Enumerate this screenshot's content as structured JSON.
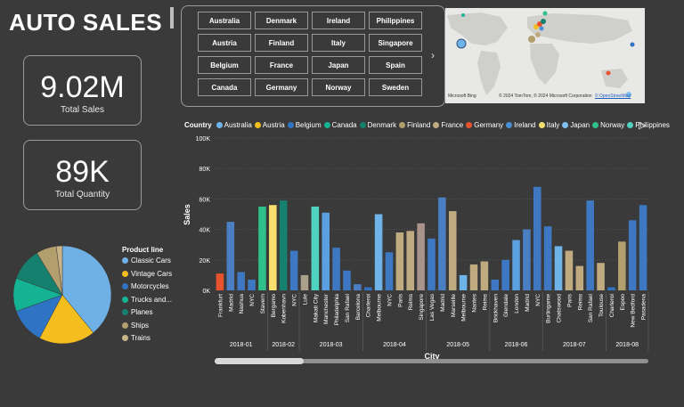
{
  "header": {
    "title": "AUTO SALES"
  },
  "kpis": {
    "total_sales": {
      "value": "9.02M",
      "label": "Total Sales"
    },
    "total_quantity": {
      "value": "89K",
      "label": "Total Quantity"
    }
  },
  "slicer": {
    "countries": [
      "Australia",
      "Denmark",
      "Ireland",
      "Philippines",
      "Austria",
      "Finland",
      "Italy",
      "Singapore",
      "Belgium",
      "France",
      "Japan",
      "Spain",
      "Canada",
      "Germany",
      "Norway",
      "Sweden"
    ]
  },
  "map": {
    "attribution_brand": "Microsoft Bing",
    "attribution": "© 2024 TomTom, © 2024 Microsoft Corporation",
    "terms_link": "© OpenStreetMap"
  },
  "colors": {
    "Australia": "#6fb4e8",
    "Austria": "#f5be1f",
    "Belgium": "#2f74c4",
    "Canada": "#14b394",
    "Denmark": "#15806e",
    "Finland": "#b29f6d",
    "France": "#c0aa80",
    "Germany": "#e8532f",
    "Ireland": "#4a8fd6",
    "Italy": "#f7e06e",
    "Japan": "#7fc0f0",
    "Norway": "#2fc08c",
    "Philippines": "#4fd3c0",
    "Singapore": "#a8948a",
    "Spain": "#4a7fc4",
    "Sweden": "#aba08a",
    "USA": "#3e78c2",
    "UK": "#5aa0e0",
    "Switzerland": "#b0a070"
  },
  "chart_data": [
    {
      "type": "bar",
      "title": "",
      "legend_title": "Country",
      "legend_placement": "top",
      "legend": [
        "Australia",
        "Austria",
        "Belgium",
        "Canada",
        "Denmark",
        "Finland",
        "France",
        "Germany",
        "Ireland",
        "Italy",
        "Japan",
        "Norway",
        "Philippines"
      ],
      "xlabel": "City",
      "ylabel": "Sales",
      "ylim": [
        0,
        100000
      ],
      "yticks": [
        "0K",
        "20K",
        "40K",
        "60K",
        "80K",
        "100K"
      ],
      "grid": true,
      "categories": [
        "Frankfurt",
        "Madrid",
        "Nashua",
        "NYC",
        "Stavern",
        "Bergamo",
        "Kobenhavn",
        "NYC",
        "Lule",
        "Makati City",
        "Manchester",
        "Philadelphia",
        "San Rafael",
        "Barcelona",
        "Charleroi",
        "Melbourne",
        "NYC",
        "Paris",
        "Reims",
        "Singapore",
        "Las Vegas",
        "Madrid",
        "Marseille",
        "Melbourne",
        "Nantes",
        "Reims",
        "Brickhaven",
        "Glendale",
        "London",
        "Madrid",
        "NYC",
        "Burlingame",
        "Chatswood",
        "Paris",
        "Reims",
        "San Rafael",
        "Toulouse",
        "Charleroi",
        "Espoo",
        "New Bedford",
        "Pasadena"
      ],
      "months": [
        {
          "label": "2018-01",
          "start": 0,
          "end": 4
        },
        {
          "label": "2018-02",
          "start": 5,
          "end": 7
        },
        {
          "label": "2018-03",
          "start": 8,
          "end": 13
        },
        {
          "label": "2018-04",
          "start": 14,
          "end": 19
        },
        {
          "label": "2018-05",
          "start": 20,
          "end": 25
        },
        {
          "label": "2018-06",
          "start": 26,
          "end": 30
        },
        {
          "label": "2018-07",
          "start": 31,
          "end": 36
        },
        {
          "label": "2018-08",
          "start": 37,
          "end": 40
        }
      ],
      "values": [
        11000,
        45000,
        12000,
        7000,
        55000,
        56000,
        59000,
        26000,
        10000,
        55000,
        51000,
        28000,
        13000,
        4000,
        2000,
        50000,
        25000,
        38000,
        39000,
        44000,
        34000,
        61000,
        52000,
        10000,
        17000,
        19000,
        7000,
        20000,
        33000,
        40000,
        68000,
        42000,
        29000,
        26000,
        16000,
        59000,
        18000,
        2000,
        32000,
        46000,
        56000
      ],
      "countries": [
        "Germany",
        "Spain",
        "USA",
        "USA",
        "Norway",
        "Italy",
        "Denmark",
        "USA",
        "Sweden",
        "Philippines",
        "UK",
        "USA",
        "USA",
        "Spain",
        "Belgium",
        "Australia",
        "USA",
        "France",
        "France",
        "Singapore",
        "USA",
        "Spain",
        "France",
        "Australia",
        "France",
        "France",
        "USA",
        "USA",
        "UK",
        "Spain",
        "USA",
        "USA",
        "Australia",
        "France",
        "France",
        "USA",
        "France",
        "Belgium",
        "Finland",
        "USA",
        "USA"
      ]
    },
    {
      "type": "pie",
      "legend_title": "Product line",
      "legend_placement": "right",
      "labels": [
        "Classic Cars",
        "Vintage Cars",
        "Motorcycles",
        "Trucks and...",
        "Planes",
        "Ships",
        "Trains"
      ],
      "values": [
        39.1,
        18.6,
        11.8,
        11.0,
        10.8,
        6.7,
        2.0
      ],
      "colors": [
        "#6fb1e6",
        "#f5be1f",
        "#2f74c4",
        "#14b394",
        "#15806e",
        "#b29f6d",
        "#c9b48a"
      ]
    }
  ]
}
